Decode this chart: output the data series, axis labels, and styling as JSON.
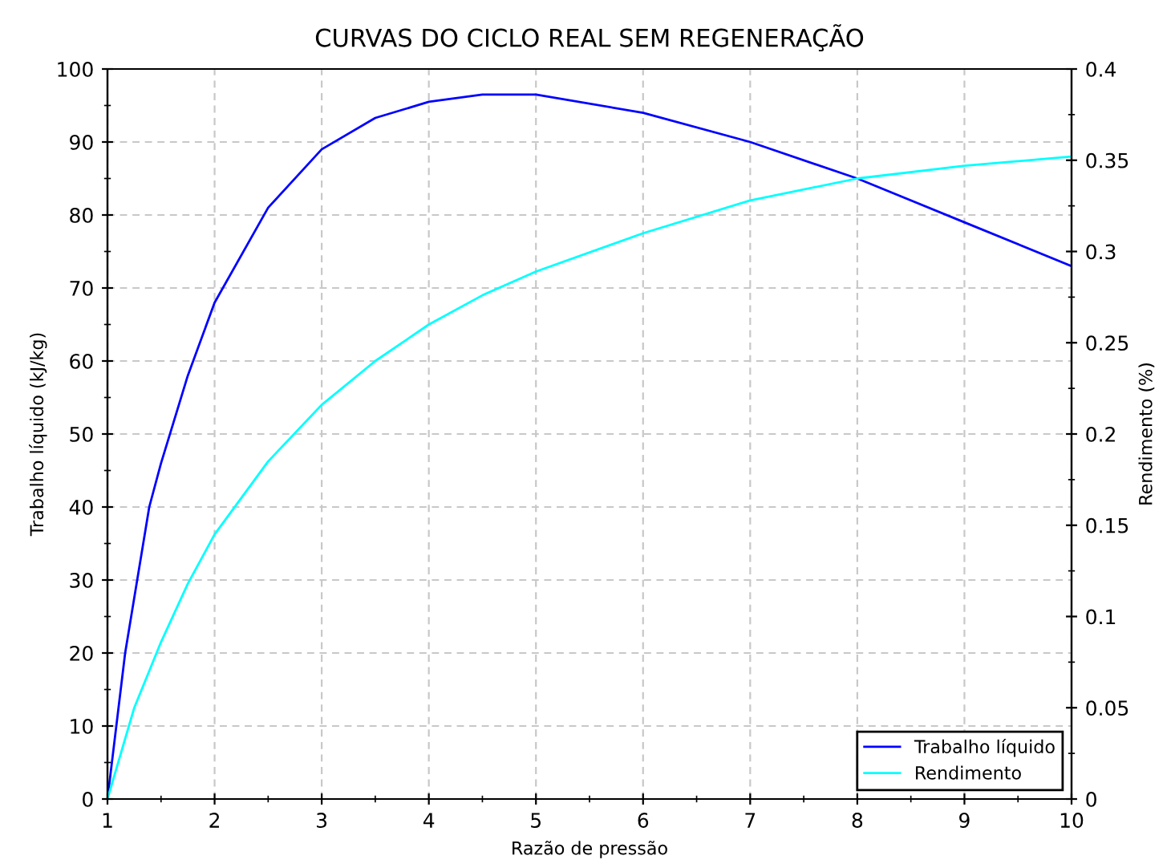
{
  "chart_data": {
    "type": "line",
    "title": "CURVAS DO CICLO REAL SEM REGENERAÇÃO",
    "xlabel": "Razão de pressão",
    "ylabel": "Trabalho líquido (kJ/kg)",
    "y2label": "Rendimento (%)",
    "xlim": [
      1,
      10
    ],
    "xticks": [
      1,
      2,
      3,
      4,
      5,
      6,
      7,
      8,
      9,
      10
    ],
    "ylim": [
      0,
      100
    ],
    "yticks": [
      0,
      10,
      20,
      30,
      40,
      50,
      60,
      70,
      80,
      90,
      100
    ],
    "y2lim": [
      0,
      0.4
    ],
    "y2ticks": [
      0,
      0.05,
      0.1,
      0.15,
      0.2,
      0.25,
      0.3,
      0.35,
      0.4
    ],
    "grid": true,
    "legend": "bottom right",
    "line_style": "solid",
    "marker": "none",
    "series": [
      {
        "name": "Trabalho líquido",
        "color": "#0000ff",
        "x": [
          1,
          1.165,
          1.39,
          1.5,
          1.75,
          2,
          2.5,
          3,
          3.5,
          4,
          4.5,
          5,
          6,
          7,
          8,
          9,
          10
        ],
        "values": [
          0,
          20,
          40,
          46,
          58,
          68,
          81,
          89,
          93.3,
          95.5,
          96.5,
          96.5,
          94,
          90,
          85,
          79,
          73
        ]
      },
      {
        "name": "Rendimento",
        "color": "#00ffff",
        "axis": "y2",
        "x": [
          1,
          1.25,
          1.5,
          1.75,
          2,
          2.5,
          3,
          3.5,
          4,
          4.5,
          5,
          6,
          7,
          8,
          9,
          10
        ],
        "values": [
          0,
          0.05,
          0.086,
          0.118,
          0.145,
          0.185,
          0.216,
          0.24,
          0.26,
          0.276,
          0.289,
          0.31,
          0.328,
          0.34,
          0.347,
          0.352
        ]
      }
    ]
  }
}
